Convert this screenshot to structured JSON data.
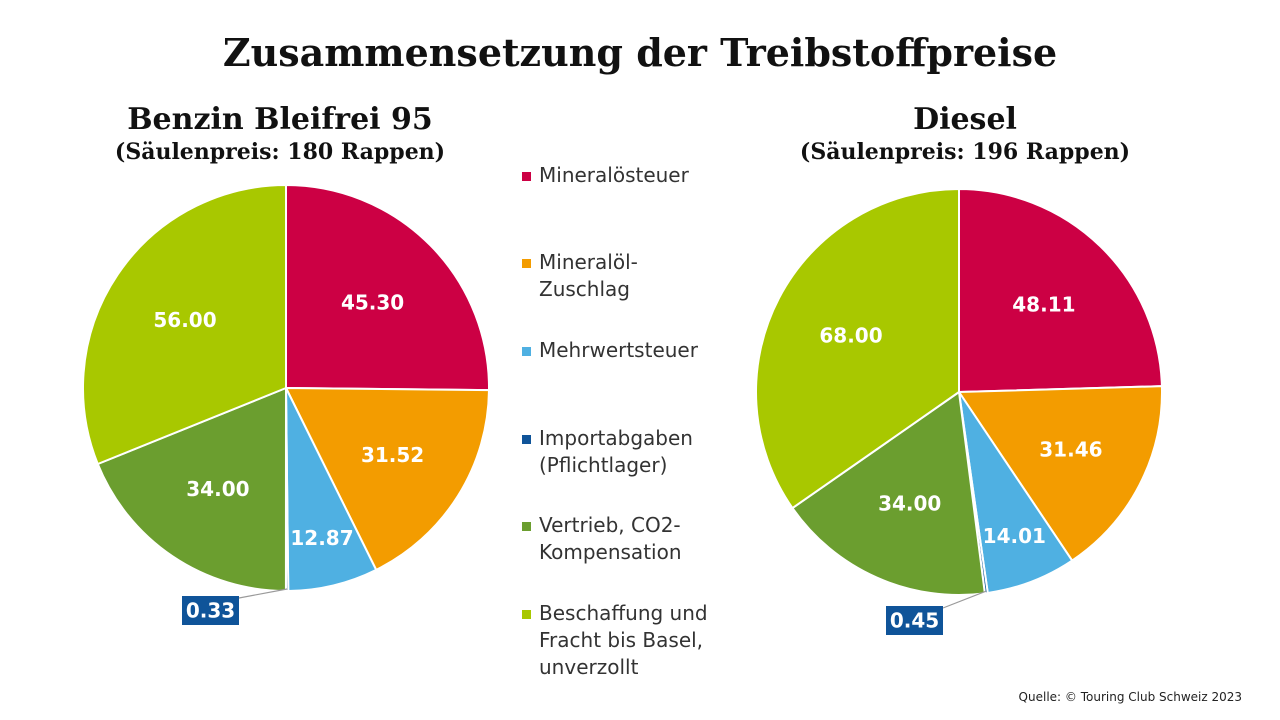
{
  "title": "Zusammensetzung der Treibstoffpreise",
  "source": "Quelle: © Touring Club Schweiz 2023",
  "legend": [
    {
      "label": "Mineralösteuer",
      "color": "#cc0044"
    },
    {
      "label": "Mineralöl-\nZuschlag",
      "color": "#f39c00"
    },
    {
      "label": "Mehrwertsteuer",
      "color": "#4fb0e2"
    },
    {
      "label": "Importabgaben\n(Pflichtlager)",
      "color": "#0f5499"
    },
    {
      "label": "Vertrieb, CO2-\nKompensation",
      "color": "#6b9e2f"
    },
    {
      "label": "Beschaffung und\nFracht bis Basel,\nunverzollt",
      "color": "#a8c800"
    }
  ],
  "chart_data": [
    {
      "type": "pie",
      "title": "Benzin Bleifrei 95",
      "subtitle": "(Säulenpreis: 180 Rappen)",
      "categories": [
        "Mineralösteuer",
        "Mineralöl-Zuschlag",
        "Mehrwertsteuer",
        "Importabgaben (Pflichtlager)",
        "Vertrieb, CO2-Kompensation",
        "Beschaffung und Fracht bis Basel, unverzollt"
      ],
      "values": [
        45.3,
        31.52,
        12.87,
        0.33,
        34.0,
        56.0
      ],
      "labels": [
        "45.30",
        "31.52",
        "12.87",
        "0.33",
        "34.00",
        "56.00"
      ]
    },
    {
      "type": "pie",
      "title": "Diesel",
      "subtitle": "(Säulenpreis: 196 Rappen)",
      "categories": [
        "Mineralösteuer",
        "Mineralöl-Zuschlag",
        "Mehrwertsteuer",
        "Importabgaben (Pflichtlager)",
        "Vertrieb, CO2-Kompensation",
        "Beschaffung und Fracht bis Basel, unverzollt"
      ],
      "values": [
        48.11,
        31.46,
        14.01,
        0.45,
        34.0,
        68.0
      ],
      "labels": [
        "48.11",
        "31.46",
        "14.01",
        "0.45",
        "34.00",
        "68.00"
      ]
    }
  ]
}
